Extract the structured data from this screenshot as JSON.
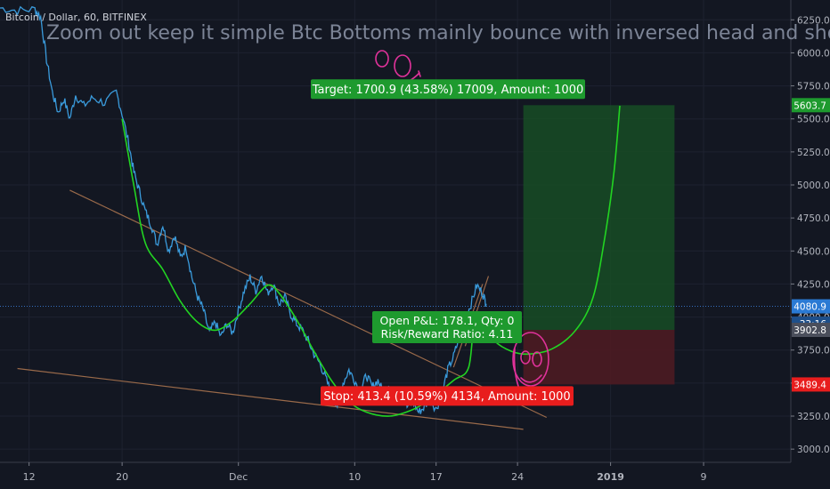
{
  "header": {
    "symbol_line": "Bitcoin / Dollar, 60, BITFINEX",
    "idea_title": "Zoom out keep it simple Btc Bottoms mainly bounce with inversed head and shou"
  },
  "chart_data": {
    "type": "line",
    "price_axis": {
      "ticks": [
        "6250.0",
        "6000.0",
        "5750.0",
        "5500.0",
        "5250.0",
        "5000.0",
        "4750.0",
        "4500.0",
        "4250.0",
        "4000.0",
        "3750.0",
        "3500.0",
        "3250.0",
        "3000.0"
      ],
      "tick_values": [
        6250,
        6000,
        5750,
        5500,
        5250,
        5000,
        4750,
        4500,
        4250,
        4000,
        3750,
        3500,
        3250,
        3000
      ],
      "range": [
        2900,
        6400
      ]
    },
    "time_axis": {
      "labels": [
        {
          "text": "12",
          "day": 12
        },
        {
          "text": "20",
          "day": 20
        },
        {
          "text": "Dec",
          "day": 30
        },
        {
          "text": "10",
          "day": 40
        },
        {
          "text": "17",
          "day": 47
        },
        {
          "text": "24",
          "day": 54
        },
        {
          "text": "2019",
          "day": 62,
          "bold": true
        },
        {
          "text": "9",
          "day": 70
        }
      ],
      "range": [
        9.5,
        77.5
      ]
    },
    "price_series": {
      "name": "BTCUSD",
      "color": "#3a9bdc",
      "points": [
        [
          9.5,
          6340
        ],
        [
          11,
          6320
        ],
        [
          12.5,
          6330
        ],
        [
          13,
          6270
        ],
        [
          13.5,
          5950
        ],
        [
          14,
          5700
        ],
        [
          14.5,
          5550
        ],
        [
          15,
          5650
        ],
        [
          15.5,
          5500
        ],
        [
          16,
          5680
        ],
        [
          16.7,
          5600
        ],
        [
          17.5,
          5660
        ],
        [
          18.5,
          5620
        ],
        [
          19.5,
          5700
        ],
        [
          20,
          5540
        ],
        [
          20.6,
          5300
        ],
        [
          21,
          5100
        ],
        [
          21.5,
          4950
        ],
        [
          22,
          4800
        ],
        [
          22.5,
          4700
        ],
        [
          23,
          4550
        ],
        [
          23.5,
          4700
        ],
        [
          24,
          4500
        ],
        [
          24.5,
          4620
        ],
        [
          25,
          4450
        ],
        [
          25.5,
          4530
        ],
        [
          26,
          4300
        ],
        [
          26.5,
          4150
        ],
        [
          27,
          4050
        ],
        [
          27.5,
          3880
        ],
        [
          28,
          3960
        ],
        [
          28.5,
          3850
        ],
        [
          29,
          3950
        ],
        [
          29.5,
          3880
        ],
        [
          30,
          4050
        ],
        [
          30.5,
          4200
        ],
        [
          31,
          4300
        ],
        [
          31.5,
          4200
        ],
        [
          32,
          4320
        ],
        [
          32.5,
          4180
        ],
        [
          33,
          4250
        ],
        [
          33.5,
          4100
        ],
        [
          34,
          4150
        ],
        [
          34.5,
          4020
        ],
        [
          35,
          3950
        ],
        [
          35.5,
          3900
        ],
        [
          36,
          3820
        ],
        [
          36.5,
          3720
        ],
        [
          37,
          3650
        ],
        [
          37.5,
          3540
        ],
        [
          38,
          3420
        ],
        [
          38.5,
          3330
        ],
        [
          39,
          3500
        ],
        [
          39.5,
          3600
        ],
        [
          40,
          3520
        ],
        [
          40.5,
          3440
        ],
        [
          41,
          3560
        ],
        [
          41.5,
          3470
        ],
        [
          42,
          3520
        ],
        [
          42.5,
          3420
        ],
        [
          43,
          3500
        ],
        [
          43.5,
          3400
        ],
        [
          44,
          3450
        ],
        [
          44.5,
          3320
        ],
        [
          45,
          3360
        ],
        [
          45.5,
          3280
        ],
        [
          46,
          3320
        ],
        [
          46.5,
          3380
        ],
        [
          47,
          3300
        ],
        [
          47.5,
          3420
        ],
        [
          48,
          3600
        ],
        [
          48.5,
          3700
        ],
        [
          49,
          3850
        ],
        [
          49.5,
          3980
        ],
        [
          50,
          4100
        ],
        [
          50.5,
          4240
        ],
        [
          51,
          4180
        ],
        [
          51.3,
          4100
        ]
      ]
    },
    "projection_curve": {
      "color": "#22d422",
      "points": [
        [
          20,
          5500
        ],
        [
          21,
          5000
        ],
        [
          22,
          4560
        ],
        [
          23.5,
          4360
        ],
        [
          25,
          4120
        ],
        [
          26.5,
          3960
        ],
        [
          28,
          3900
        ],
        [
          29.5,
          3970
        ],
        [
          31,
          4100
        ],
        [
          32.5,
          4240
        ],
        [
          33.5,
          4180
        ],
        [
          35,
          3980
        ],
        [
          36.5,
          3740
        ],
        [
          38,
          3520
        ],
        [
          39.5,
          3360
        ],
        [
          41,
          3280
        ],
        [
          43,
          3250
        ],
        [
          45,
          3300
        ],
        [
          46.5,
          3380
        ],
        [
          48.5,
          3520
        ],
        [
          49.8,
          3620
        ],
        [
          50.3,
          4000
        ],
        [
          50.9,
          3960
        ],
        [
          52,
          3820
        ],
        [
          53.5,
          3740
        ],
        [
          55,
          3720
        ],
        [
          57,
          3760
        ],
        [
          59,
          3900
        ],
        [
          60.5,
          4150
        ],
        [
          61.5,
          4600
        ],
        [
          62.3,
          5100
        ],
        [
          62.8,
          5600
        ]
      ]
    },
    "trendlines": [
      {
        "color": "#9a6a4a",
        "from": [
          15.5,
          4960
        ],
        "to": [
          56.5,
          3240
        ]
      },
      {
        "color": "#9a6a4a",
        "from": [
          11,
          3610
        ],
        "to": [
          54.5,
          3150
        ]
      },
      {
        "color": "#9a6a4a",
        "from": [
          48.5,
          3620
        ],
        "to": [
          51,
          4250
        ]
      },
      {
        "color": "#9a6a4a",
        "from": [
          49.5,
          3780
        ],
        "to": [
          51.5,
          4310
        ]
      }
    ],
    "position": {
      "x_from": 54.5,
      "x_to": 67.5,
      "target_price": 5603.7,
      "entry_price": 3902.8,
      "stop_price": 3489.4,
      "target_label": "Target: 1700.9 (43.58%) 17009, Amount: 1000",
      "stop_label": "Stop: 413.4 (10.59%) 4134, Amount: 1000",
      "pnl_label": "Open P&L: 178.1, Qty: 0",
      "rr_label": "Risk/Reward Ratio: 4.11"
    },
    "price_badges": [
      {
        "text": "5603.7",
        "value": 5603.7,
        "color": "#1e9a2e"
      },
      {
        "text": "4080.9",
        "value": 4080.9,
        "color": "#2a7ad4"
      },
      {
        "text": "33:16",
        "value": 3950,
        "color": "#1e4f8a"
      },
      {
        "text": "3902.8",
        "value": 3902.8,
        "color": "#4b4f5c"
      },
      {
        "text": "3489.4",
        "value": 3489.4,
        "color": "#e81d1d"
      }
    ],
    "current_price_line": 4080.9,
    "doodles": {
      "color": "#e0329a"
    }
  }
}
